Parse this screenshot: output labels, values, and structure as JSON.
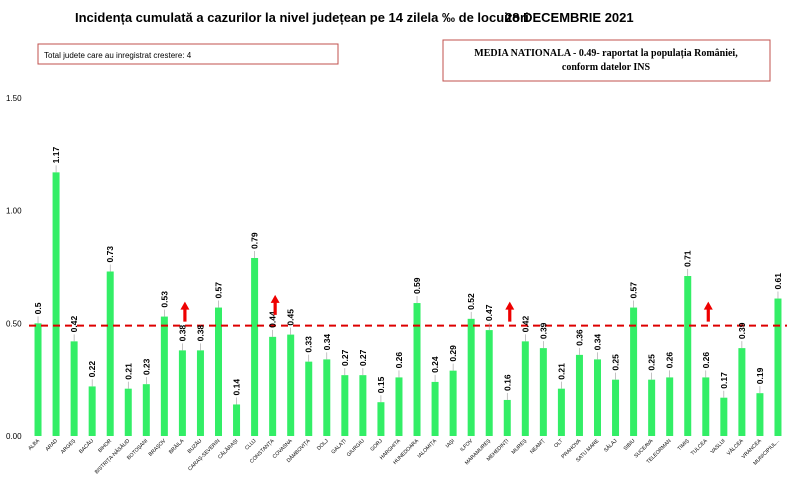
{
  "header": {
    "title": "Incidența cumulată a cazurilor la nivel județean pe 14 zilela ‰ de locuitori",
    "date": "28 DECEMBRIE 2021"
  },
  "info_box": {
    "text": "Total judete care au inregistrat crestere: 4"
  },
  "media_box": {
    "line1": "MEDIA NATIONALA - 0.49- raportat la populația României,",
    "line2": "conform datelor INS"
  },
  "colors": {
    "bar": "#33ee66",
    "reference_line": "#dd0000",
    "arrow": "#ee0000",
    "box_border": "#c0504d"
  },
  "chart_data": {
    "type": "bar",
    "categories": [
      "ALBA",
      "ARAD",
      "ARGEȘ",
      "BACĂU",
      "BIHOR",
      "BISTRIȚA-NĂSĂUD",
      "BOTOȘANI",
      "BRAȘOV",
      "BRĂILA",
      "BUZĂU",
      "CARAȘ-SEVERIN",
      "CĂLĂRAȘI",
      "CLUJ",
      "CONSTANȚA",
      "COVASNA",
      "DÂMBOVIȚA",
      "DOLJ",
      "GALAȚI",
      "GIURGIU",
      "GORJ",
      "HARGHITA",
      "HUNEDOARA",
      "IALOMIȚA",
      "IAȘI",
      "ILFOV",
      "MARAMUREȘ",
      "MEHEDINȚI",
      "MUREȘ",
      "NEAMȚ",
      "OLT",
      "PRAHOVA",
      "SATU MARE",
      "SĂLAJ",
      "SIBIU",
      "SUCEAVA",
      "TELEORMAN",
      "TIMIȘ",
      "TULCEA",
      "VASLUI",
      "VÂLCEA",
      "VRANCEA",
      "MUNICIPIUL..."
    ],
    "values": [
      0.5,
      1.17,
      0.42,
      0.22,
      0.73,
      0.21,
      0.23,
      0.53,
      0.38,
      0.38,
      0.57,
      0.14,
      0.79,
      0.44,
      0.45,
      0.33,
      0.34,
      0.27,
      0.27,
      0.15,
      0.26,
      0.59,
      0.24,
      0.29,
      0.52,
      0.47,
      0.16,
      0.42,
      0.39,
      0.21,
      0.36,
      0.34,
      0.25,
      0.57,
      0.25,
      0.26,
      0.71,
      0.26,
      0.17,
      0.39,
      0.19,
      0.61
    ],
    "data_labels": [
      "0.5",
      "1.17",
      "0.42",
      "0.22",
      "0.73",
      "0.21",
      "0.23",
      "0.53",
      "0.38",
      "0.38",
      "0.57",
      "0.14",
      "0.79",
      "0.44",
      "0.45",
      "0.33",
      "0.34",
      "0.27",
      "0.27",
      "0.15",
      "0.26",
      "0.59",
      "0.24",
      "0.29",
      "0.52",
      "0.47",
      "0.16",
      "0.42",
      "0.39",
      "0.21",
      "0.36",
      "0.34",
      "0.25",
      "0.57",
      "0.25",
      "0.26",
      "0.71",
      "0.26",
      "0.17",
      "0.39",
      "0.19",
      "0.61"
    ],
    "increase_markers": [
      "BRĂILA",
      "CONSTANȚA",
      "MEHEDINȚI",
      "TULCEA"
    ],
    "reference_line": 0.49,
    "y_ticks": [
      0,
      0.5,
      1.0,
      1.5
    ],
    "y_tick_labels": [
      "0.00",
      "0.50",
      "1.00",
      "1.50"
    ],
    "ylim": [
      0,
      1.5
    ],
    "grid": false,
    "title": "Incidența cumulată a cazurilor la nivel județean pe 14 zilela ‰ de locuitori",
    "xlabel": "",
    "ylabel": ""
  }
}
